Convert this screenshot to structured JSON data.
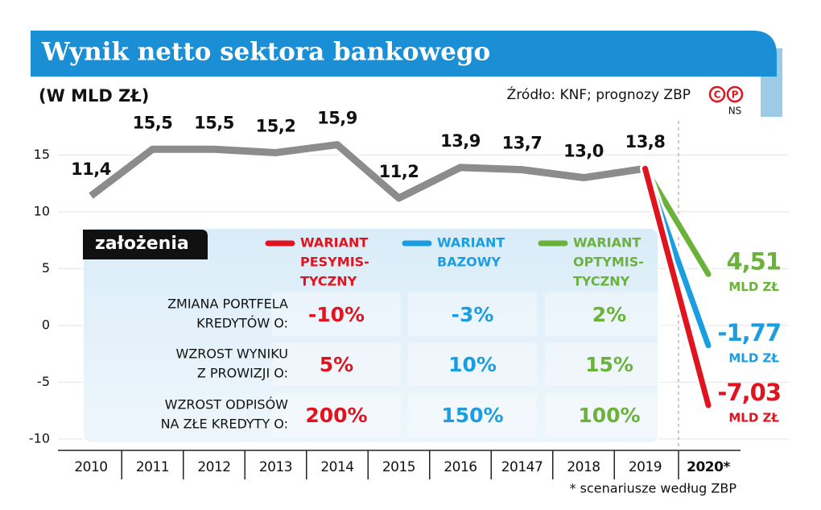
{
  "header": {
    "title": "Wynik netto sektora bankowego",
    "unit": "(W MLD ZŁ)",
    "source": "Źródło: KNF; prognozy ZBP",
    "badges": [
      "C",
      "P"
    ],
    "author": "NS",
    "footnote": "* scenariusze według ZBP"
  },
  "chart_data": {
    "type": "line",
    "categories": [
      "2010",
      "2011",
      "2012",
      "2013",
      "2014",
      "2015",
      "2016",
      "20147",
      "2018",
      "2019",
      "2020*"
    ],
    "ylim": [
      -11,
      18
    ],
    "yticks": [
      -10,
      -5,
      0,
      5,
      10,
      15
    ],
    "grid": true,
    "unit_label": "MLD ZŁ",
    "series": [
      {
        "color": "#8c8c8c",
        "values": [
          11.4,
          15.5,
          15.5,
          15.2,
          15.9,
          11.2,
          13.9,
          13.7,
          13.0,
          13.8,
          null
        ],
        "value_labels": [
          "11,4",
          "15,5",
          "15,5",
          "15,2",
          "15,9",
          "11,2",
          "13,9",
          "13,7",
          "13,0",
          "13,8",
          null
        ]
      },
      {
        "name": [
          "WARIANT",
          "PESYMIS-",
          "TYCZNY"
        ],
        "color": "#e0141e",
        "values": [
          null,
          null,
          null,
          null,
          null,
          null,
          null,
          null,
          null,
          null,
          -7.03
        ],
        "value_labels": [
          null,
          null,
          null,
          null,
          null,
          null,
          null,
          null,
          null,
          null,
          "-7,03"
        ]
      },
      {
        "name": [
          "WARIANT",
          "BAZOWY"
        ],
        "color": "#1b9ee0",
        "values": [
          null,
          null,
          null,
          null,
          null,
          null,
          null,
          null,
          null,
          null,
          -1.77
        ],
        "value_labels": [
          null,
          null,
          null,
          null,
          null,
          null,
          null,
          null,
          null,
          null,
          "-1,77"
        ]
      },
      {
        "name": [
          "WARIANT",
          "OPTYMIS-",
          "TYCZNY"
        ],
        "color": "#6ab23a",
        "values": [
          null,
          null,
          null,
          null,
          null,
          null,
          null,
          null,
          null,
          null,
          4.51
        ],
        "value_labels": [
          null,
          null,
          null,
          null,
          null,
          null,
          null,
          null,
          null,
          null,
          "4,51"
        ]
      }
    ]
  },
  "assumptions": {
    "title": "założenia",
    "rows": [
      {
        "label": [
          "ZMIANA PORTFELA",
          "KREDYTÓW O:"
        ],
        "values": [
          "-10%",
          "-3%",
          "2%"
        ]
      },
      {
        "label": [
          "WZROST WYNIKU",
          "Z PROWIZJI O:"
        ],
        "values": [
          "5%",
          "10%",
          "15%"
        ]
      },
      {
        "label": [
          "WZROST ODPISÓW",
          "NA ZŁE KREDYTY O:"
        ],
        "values": [
          "200%",
          "150%",
          "100%"
        ]
      }
    ]
  }
}
